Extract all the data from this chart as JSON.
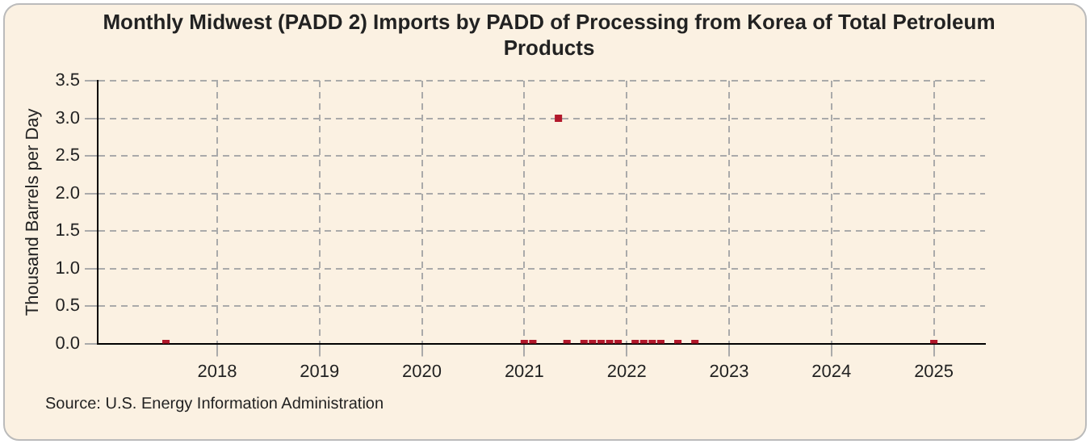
{
  "chart_data": {
    "type": "scatter",
    "title": "Monthly Midwest (PADD 2) Imports by PADD of Processing from Korea of Total Petroleum Products",
    "ylabel": "Thousand Barrels per Day",
    "x": [
      "2017-07",
      "2021-01",
      "2021-02",
      "2021-05",
      "2021-06",
      "2021-08",
      "2021-09",
      "2021-10",
      "2021-11",
      "2021-12",
      "2022-02",
      "2022-03",
      "2022-04",
      "2022-05",
      "2022-07",
      "2022-09",
      "2025-01"
    ],
    "values": [
      0,
      0,
      0,
      3.0,
      0,
      0,
      0,
      0,
      0,
      0,
      0,
      0,
      0,
      0,
      0,
      0,
      0
    ],
    "color": "#b2182b",
    "xlim": [
      "2016-11",
      "2025-07"
    ],
    "xticks": [
      "2018",
      "2019",
      "2020",
      "2021",
      "2022",
      "2023",
      "2024",
      "2025"
    ],
    "ylim": [
      0,
      3.5
    ],
    "yticks": [
      {
        "value": 0,
        "label": "0.0"
      },
      {
        "value": 0.5,
        "label": "0.5"
      },
      {
        "value": 1,
        "label": "1.0"
      },
      {
        "value": 1.5,
        "label": "1.5"
      },
      {
        "value": 2,
        "label": "2.0"
      },
      {
        "value": 2.5,
        "label": "2.5"
      },
      {
        "value": 3,
        "label": "3.0"
      },
      {
        "value": 3.5,
        "label": "3.5"
      }
    ],
    "grid": true,
    "marker": "square",
    "annotations": [
      "Source: U.S. Energy Information Administration"
    ]
  }
}
